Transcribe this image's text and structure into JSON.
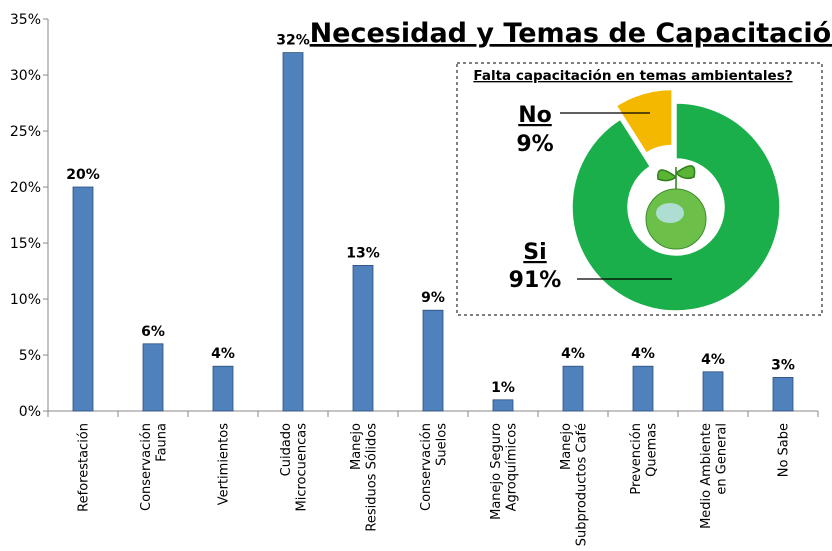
{
  "chart_data": [
    {
      "type": "bar",
      "title": "Necesidad y Temas de Capacitación",
      "categories": [
        "Reforestación",
        "Conservación\nFauna",
        "Vertimientos",
        "Cuidado\nMicrocuencas",
        "Manejo\nResiduos Sólidos",
        "Conservación\nSuelos",
        "Manejo Seguro\nAgroquímicos",
        "Manejo\nSubproductos Café",
        "Prevención\nQuemas",
        "Medio Ambiente\nen General",
        "No Sabe"
      ],
      "values": [
        20,
        6,
        4,
        32,
        13,
        9,
        1,
        4,
        4,
        3.5,
        3
      ],
      "value_labels": [
        "20%",
        "6%",
        "4%",
        "32%",
        "13%",
        "9%",
        "1%",
        "4%",
        "4%",
        "4%",
        "3%"
      ],
      "color": "#4f81bd",
      "ylim": [
        0,
        35
      ],
      "yticks": [
        {
          "value": 0,
          "label": "0%"
        },
        {
          "value": 5,
          "label": "5%"
        },
        {
          "value": 10,
          "label": "10%"
        },
        {
          "value": 15,
          "label": "15%"
        },
        {
          "value": 20,
          "label": "20%"
        },
        {
          "value": 25,
          "label": "25%"
        },
        {
          "value": 30,
          "label": "30%"
        },
        {
          "value": 35,
          "label": "35%"
        }
      ]
    },
    {
      "type": "donut",
      "title": "Falta capacitación en temas ambientales?",
      "categories": [
        "No",
        "Si"
      ],
      "values": [
        9,
        91
      ],
      "value_labels": [
        "9%",
        "91%"
      ],
      "colors": [
        "#f5b800",
        "#1aaf4b"
      ]
    }
  ]
}
